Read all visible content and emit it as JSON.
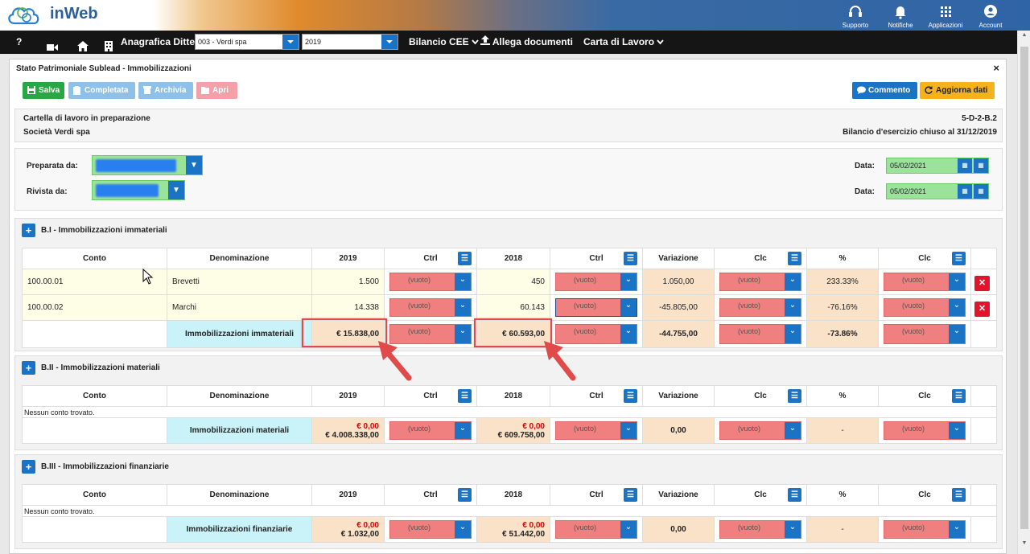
{
  "app": {
    "logo_text": "inWeb"
  },
  "topicons": [
    {
      "label": "Supporto",
      "icon": "headset-icon"
    },
    {
      "label": "Notifiche",
      "icon": "bell-icon"
    },
    {
      "label": "Applicazioni",
      "icon": "grid-icon"
    },
    {
      "label": "Account",
      "icon": "user-icon"
    }
  ],
  "nav": {
    "help": "?",
    "anagrafica_label": "Anagrafica Ditte",
    "company_value": "003 - Verdi spa",
    "year_value": "2019",
    "bilancio_label": "Bilancio CEE",
    "allega_label": "Allega documenti",
    "carta_label": "Carta di Lavoro"
  },
  "panel": {
    "title": "Stato Patrimoniale Sublead - Immobilizzazioni",
    "close": "×"
  },
  "toolbar": {
    "salva": "Salva",
    "completata": "Completata",
    "archivia": "Archivia",
    "apri": "Apri",
    "commento": "Commento",
    "aggiorna": "Aggiorna dati"
  },
  "info": {
    "line1": "Cartella di lavoro in preparazione",
    "line2": "Società Verdi spa",
    "code": "5-D-2-B.2",
    "bilancio": "Bilancio d'esercizio chiuso al 31/12/2019"
  },
  "people": {
    "preparata_label": "Preparata da:",
    "rivista_label": "Rivista da:",
    "data_label": "Data:",
    "data1": "05/02/2021",
    "data2": "05/02/2021"
  },
  "headers": {
    "conto": "Conto",
    "denominazione": "Denominazione",
    "y1": "2019",
    "ctrl": "Ctrl",
    "y2": "2018",
    "variazione": "Variazione",
    "clc": "Clc",
    "pct": "%"
  },
  "empty": "(vuoto)",
  "sections": {
    "immateriali": {
      "title": "B.I - Immobilizzazioni immateriali",
      "rows": [
        {
          "conto": "100.00.01",
          "den": "Brevetti",
          "v2019": "1.500",
          "v2018": "450",
          "var": "1.050,00",
          "pct": "233.33%"
        },
        {
          "conto": "100.00.02",
          "den": "Marchi",
          "v2019": "14.338",
          "v2018": "60.143",
          "var": "-45.805,00",
          "pct": "-76.16%"
        }
      ],
      "total": {
        "label": "Immobilizzazioni immateriali",
        "v2019": "€ 15.838,00",
        "v2018": "€ 60.593,00",
        "var": "-44.755,00",
        "pct": "-73.86%"
      }
    },
    "materiali": {
      "title": "B.II - Immobilizzazioni materiali",
      "empty_text": "Nessun conto trovato.",
      "total": {
        "label": "Immobilizzazioni materiali",
        "v2019_a": "€ 0,00",
        "v2019_b": "€ 4.008.338,00",
        "v2018_a": "€ 0,00",
        "v2018_b": "€ 609.758,00",
        "var": "0,00",
        "pct": "-"
      }
    },
    "finanziarie": {
      "title": "B.III - Immobilizzazioni finanziarie",
      "empty_text": "Nessun conto trovato.",
      "total": {
        "label": "Immobilizzazioni finanziarie",
        "v2019_a": "€ 0,00",
        "v2019_b": "€ 1.032,00",
        "v2018_a": "€ 0,00",
        "v2018_b": "€ 51.442,00",
        "var": "0,00",
        "pct": "-"
      }
    }
  }
}
